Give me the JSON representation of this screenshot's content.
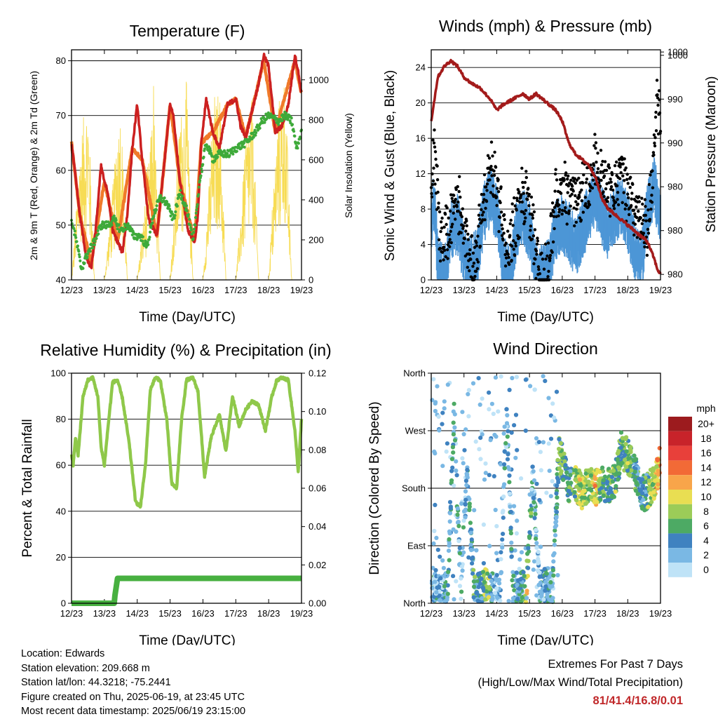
{
  "colors": {
    "temp2m": "#cc2020",
    "temp9m": "#f07a2a",
    "dewpoint": "#3eaa3a",
    "solar": "#f7dc55",
    "gust": "#000000",
    "wind": "#4d96d6",
    "pressure": "#a31b1b",
    "rh": "#8fc84a",
    "precip": "#47b040"
  },
  "x_ticks": [
    "12/23",
    "13/23",
    "14/23",
    "15/23",
    "16/23",
    "17/23",
    "18/23",
    "19/23"
  ],
  "panels": {
    "temperature": {
      "title": "Temperature (F)",
      "xlabel": "Time (Day/UTC)",
      "ylabel_left": "2m & 9m T (Red, Orange) & 2m Td (Green)",
      "ylabel_right": "Solar Insolation (Yellow)",
      "left_ticks": [
        "40",
        "50",
        "60",
        "70",
        "80"
      ],
      "right_ticks": [
        "0",
        "200",
        "400",
        "600",
        "800",
        "1000"
      ]
    },
    "winds": {
      "title": "Winds (mph) & Pressure (mb)",
      "xlabel": "Time (Day/UTC)",
      "ylabel_left": "Sonic Wind & Gust (Blue, Black)",
      "ylabel_right": "Station Pressure (Maroon)",
      "left_ticks": [
        "0",
        "4",
        "8",
        "12",
        "16",
        "20",
        "24"
      ],
      "right_ticks": [
        "980",
        "980",
        "980",
        "990",
        "990",
        "1000",
        "1000"
      ]
    },
    "humidity": {
      "title": "Relative Humidity (%) & Precipitation (in)",
      "xlabel": "Time (Day/UTC)",
      "ylabel_left": "Percent & Total Rainfall",
      "left_ticks": [
        "0",
        "20",
        "40",
        "60",
        "80",
        "100"
      ],
      "right_ticks": [
        "0.00",
        "0.02",
        "0.04",
        "0.06",
        "0.08",
        "0.10",
        "0.12"
      ]
    },
    "direction": {
      "title": "Wind Direction",
      "xlabel": "Time (Day/UTC)",
      "ylabel_left": "Direction (Colored By Speed)",
      "left_ticks": [
        "North",
        "East",
        "South",
        "West",
        "North"
      ],
      "legend_title": "mph",
      "legend_labels": [
        "20+",
        "18",
        "16",
        "14",
        "12",
        "10",
        "8",
        "6",
        "4",
        "2",
        "0"
      ],
      "legend_colors": [
        "#9c1b1e",
        "#c8232a",
        "#e8403a",
        "#f26a36",
        "#f8a54a",
        "#e9de52",
        "#9ccc58",
        "#4daa64",
        "#3f82c0",
        "#7ab8e4",
        "#bfe3f7"
      ]
    }
  },
  "chart_data": [
    {
      "type": "line",
      "title": "Temperature (F)",
      "xlabel": "Time (Day/UTC)",
      "ylabel": "2m & 9m T (Red, Orange) & 2m Td (Green)",
      "ylim": [
        40,
        82
      ],
      "y2label": "Solar Insolation (Yellow)",
      "y2lim": [
        0,
        1150
      ],
      "xlim": [
        0,
        7
      ],
      "series": [
        {
          "name": "2m T",
          "x": [
            0,
            0.1,
            0.25,
            0.45,
            0.6,
            0.75,
            0.9,
            1.0,
            1.1,
            1.25,
            1.4,
            1.55,
            1.7,
            1.85,
            2.0,
            2.15,
            2.35,
            2.6,
            2.8,
            3.0,
            3.1,
            3.3,
            3.55,
            3.75,
            3.85,
            3.95,
            4.1,
            4.3,
            4.5,
            4.75,
            5.0,
            5.15,
            5.3,
            5.5,
            5.7,
            5.85,
            6.0,
            6.2,
            6.4,
            6.6,
            6.8,
            6.9,
            6.95,
            7.0
          ],
          "y": [
            65,
            60,
            52,
            44,
            42,
            50,
            61,
            58,
            56,
            49,
            47,
            45,
            52,
            64,
            72,
            62,
            51,
            48,
            60,
            72,
            70,
            58,
            49,
            47,
            52,
            65,
            73,
            67,
            64,
            72,
            73,
            68,
            66,
            71,
            76,
            81,
            79,
            67,
            68,
            72,
            81,
            78,
            76,
            74
          ]
        },
        {
          "name": "9m T",
          "x": [
            0,
            0.25,
            0.6,
            1.0,
            1.4,
            1.85,
            2.15,
            2.6,
            3.0,
            3.3,
            3.75,
            3.95,
            4.3,
            4.75,
            5.0,
            5.3,
            5.85,
            6.2,
            6.8,
            7.0
          ],
          "y": [
            65,
            52,
            43,
            58,
            47,
            64,
            62,
            48,
            72,
            58,
            47,
            65,
            67,
            72,
            73,
            66,
            80,
            67,
            80,
            74
          ]
        },
        {
          "name": "2m Td",
          "x": [
            0,
            0.15,
            0.3,
            0.5,
            0.7,
            0.9,
            1.1,
            1.3,
            1.5,
            1.7,
            1.9,
            2.1,
            2.3,
            2.5,
            2.7,
            2.9,
            3.1,
            3.3,
            3.5,
            3.7,
            3.9,
            4.1,
            4.3,
            4.5,
            4.8,
            5.0,
            5.3,
            5.6,
            5.8,
            6.0,
            6.3,
            6.5,
            6.7,
            6.85,
            7.0
          ],
          "y": [
            51,
            47,
            42,
            45,
            47,
            50,
            50,
            51,
            49,
            50,
            48,
            48,
            46,
            52,
            55,
            54,
            51,
            56,
            53,
            47,
            58,
            65,
            62,
            63,
            63,
            64,
            65,
            67,
            69,
            70,
            69,
            70,
            69,
            64,
            67
          ]
        },
        {
          "name": "Solar Insolation",
          "axis": "y2",
          "x": [
            0,
            0.3,
            0.5,
            0.7,
            1.0,
            1.3,
            1.5,
            1.7,
            2.0,
            2.3,
            2.5,
            2.7,
            3.0,
            3.3,
            3.5,
            3.7,
            4.0,
            4.3,
            4.5,
            4.7,
            5.0,
            5.3,
            5.5,
            5.7,
            6.0,
            6.3,
            6.5,
            6.7,
            7.0
          ],
          "y": [
            0,
            750,
            950,
            0,
            0,
            560,
            900,
            0,
            0,
            500,
            900,
            0,
            0,
            820,
            1000,
            0,
            0,
            780,
            1000,
            0,
            0,
            680,
            920,
            0,
            0,
            900,
            1050,
            0,
            0
          ]
        }
      ]
    },
    {
      "type": "line",
      "title": "Winds (mph) & Pressure (mb)",
      "xlabel": "Time (Day/UTC)",
      "ylabel": "Sonic Wind & Gust (Blue, Black)",
      "ylim": [
        0,
        26
      ],
      "y2label": "Station Pressure (Maroon)",
      "y2lim": [
        979.5,
        1000.5
      ],
      "xlim": [
        0,
        7
      ],
      "series": [
        {
          "name": "Sonic Wind",
          "x": [
            0,
            0.1,
            0.2,
            0.4,
            0.6,
            0.8,
            1.0,
            1.2,
            1.4,
            1.6,
            1.8,
            2.0,
            2.2,
            2.4,
            2.6,
            2.8,
            3.0,
            3.2,
            3.4,
            3.6,
            3.8,
            4.0,
            4.2,
            4.4,
            4.6,
            4.8,
            5.0,
            5.2,
            5.4,
            5.6,
            5.8,
            6.0,
            6.2,
            6.4,
            6.6,
            6.8,
            7.0
          ],
          "y": [
            7,
            10,
            2,
            1,
            6,
            7,
            3,
            2,
            3,
            8,
            10,
            8,
            2,
            1,
            6,
            8,
            6,
            1,
            1,
            2,
            6,
            7,
            6,
            4,
            6,
            8,
            10,
            8,
            6,
            8,
            9,
            7,
            4,
            2,
            8,
            11,
            8
          ]
        },
        {
          "name": "Gust",
          "x": [
            0,
            0.1,
            0.3,
            0.6,
            0.8,
            1.0,
            1.3,
            1.6,
            1.8,
            2.0,
            2.3,
            2.6,
            2.8,
            3.0,
            3.3,
            3.6,
            3.8,
            4.0,
            4.3,
            4.6,
            4.8,
            5.0,
            5.3,
            5.5,
            5.8,
            6.0,
            6.3,
            6.6,
            6.8,
            6.9,
            7.0
          ],
          "y": [
            14,
            17,
            6,
            9,
            12,
            7,
            4,
            11,
            15,
            13,
            5,
            9,
            12,
            10,
            3,
            4,
            12,
            13,
            11,
            12,
            13,
            16,
            13,
            12,
            14,
            12,
            9,
            8,
            16,
            23,
            18
          ]
        },
        {
          "name": "Station Pressure",
          "axis": "y2",
          "x": [
            0,
            0.2,
            0.4,
            0.6,
            0.8,
            1.0,
            1.2,
            1.5,
            1.8,
            2.0,
            2.2,
            2.5,
            2.8,
            3.0,
            3.2,
            3.4,
            3.6,
            3.8,
            4.0,
            4.2,
            4.4,
            4.6,
            4.8,
            5.0,
            5.2,
            5.4,
            5.6,
            5.8,
            6.0,
            6.2,
            6.4,
            6.6,
            6.8,
            6.9,
            7.0
          ],
          "y": [
            994,
            998,
            999,
            999.5,
            999,
            998,
            997.5,
            997,
            996,
            995,
            995.5,
            996,
            996.5,
            996,
            996.5,
            996,
            995.5,
            995,
            994,
            992,
            991,
            990.5,
            990,
            989,
            987,
            986,
            985.5,
            985,
            984.5,
            984,
            983.5,
            983,
            981.5,
            980.5,
            980
          ]
        }
      ]
    },
    {
      "type": "line",
      "title": "Relative Humidity (%) & Precipitation (in)",
      "xlabel": "Time (Day/UTC)",
      "ylabel": "Percent & Total Rainfall",
      "ylim": [
        0,
        100
      ],
      "y2lim": [
        0,
        0.12
      ],
      "xlim": [
        0,
        7
      ],
      "series": [
        {
          "name": "Relative Humidity",
          "x": [
            0,
            0.05,
            0.12,
            0.2,
            0.35,
            0.5,
            0.65,
            0.8,
            0.9,
            1.0,
            1.1,
            1.25,
            1.4,
            1.55,
            1.75,
            1.95,
            2.1,
            2.25,
            2.4,
            2.55,
            2.7,
            2.9,
            3.05,
            3.2,
            3.35,
            3.5,
            3.7,
            3.85,
            4.05,
            4.25,
            4.5,
            4.7,
            4.9,
            5.1,
            5.3,
            5.5,
            5.7,
            5.9,
            6.1,
            6.25,
            6.4,
            6.6,
            6.8,
            6.9,
            7.0
          ],
          "y": [
            65,
            60,
            72,
            64,
            90,
            97,
            98,
            90,
            68,
            60,
            75,
            96,
            97,
            89,
            70,
            44,
            42,
            60,
            93,
            98,
            97,
            80,
            52,
            50,
            80,
            97,
            98,
            92,
            55,
            72,
            82,
            66,
            90,
            77,
            84,
            88,
            86,
            75,
            90,
            97,
            98,
            97,
            75,
            57,
            80
          ]
        },
        {
          "name": "Total Precipitation",
          "axis": "y2",
          "x": [
            0,
            1.3,
            1.32,
            1.4,
            7.0
          ],
          "y": [
            0,
            0,
            0.004,
            0.013,
            0.013
          ]
        }
      ]
    },
    {
      "type": "scatter",
      "title": "Wind Direction",
      "xlabel": "Time (Day/UTC)",
      "ylabel": "Direction (Colored By Speed)",
      "xlim": [
        0,
        7
      ],
      "y_categories": [
        "North",
        "East",
        "South",
        "West",
        "North"
      ],
      "ylim": [
        0,
        360
      ],
      "colorbar_label": "mph",
      "series": [
        {
          "name": "direction",
          "x": [
            0.1,
            0.3,
            0.5,
            0.7,
            0.9,
            1.1,
            1.3,
            1.5,
            1.7,
            1.9,
            2.1,
            2.3,
            2.5,
            2.7,
            2.9,
            3.1,
            3.3,
            3.5,
            3.7,
            3.9,
            4.0,
            4.2,
            4.4,
            4.6,
            4.8,
            5.0,
            5.2,
            5.4,
            5.6,
            5.8,
            6.0,
            6.2,
            6.4,
            6.6,
            6.8,
            7.0
          ],
          "y": [
            20,
            15,
            25,
            300,
            20,
            200,
            25,
            20,
            30,
            20,
            15,
            300,
            20,
            25,
            20,
            200,
            25,
            30,
            20,
            240,
            220,
            180,
            190,
            175,
            185,
            180,
            190,
            185,
            190,
            240,
            230,
            210,
            170,
            175,
            190,
            220
          ],
          "speed": [
            3,
            2,
            4,
            4,
            2,
            3,
            5,
            3,
            9,
            2,
            2,
            3,
            4,
            3,
            9,
            3,
            2,
            4,
            3,
            5,
            6,
            5,
            8,
            9,
            7,
            11,
            6,
            5,
            7,
            6,
            7,
            5,
            4,
            6,
            10,
            12
          ]
        }
      ]
    }
  ],
  "footer": {
    "location": "Location: Edwards",
    "elevation": "Station elevation: 209.668 m",
    "latlon": "Station lat/lon: 44.3218; -75.2441",
    "created": "Figure created on Thu, 2025-06-19, at 23:45 UTC",
    "recent": "Most recent data timestamp: 2025/06/19 23:15:00",
    "extremes_title": "Extremes For Past 7 Days",
    "extremes_sub": "(High/Low/Max Wind/Total Precipitation)",
    "extremes_values": "81/41.4/16.8/0.01"
  }
}
